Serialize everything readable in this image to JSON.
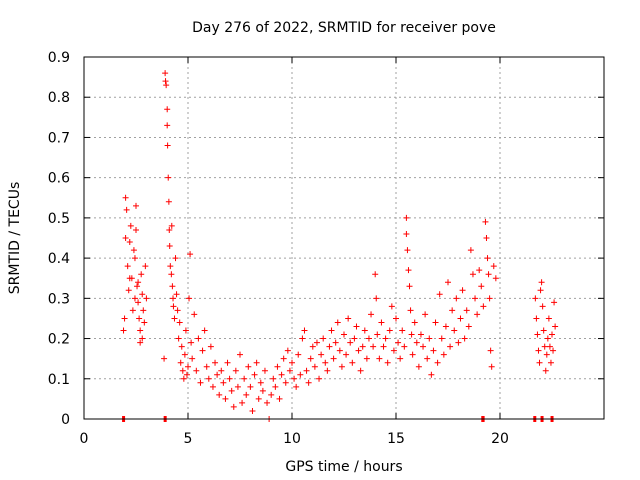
{
  "chart_data": {
    "type": "scatter",
    "title": "Day 276 of 2022, SRMTID for receiver pove",
    "xlabel": "GPS time / hours",
    "ylabel": "SRMTID / TECUs",
    "xlim": [
      0,
      25
    ],
    "ylim": [
      0,
      0.9
    ],
    "xticks": [
      0,
      5,
      10,
      15,
      20
    ],
    "xtick_labels": [
      "0",
      "5",
      "10",
      "15",
      "20"
    ],
    "yticks": [
      0,
      0.1,
      0.2,
      0.3,
      0.4,
      0.5,
      0.6,
      0.7,
      0.8,
      0.9
    ],
    "ytick_labels": [
      "0",
      "0.1",
      "0.2",
      "0.3",
      "0.4",
      "0.5",
      "0.6",
      "0.7",
      "0.8",
      "0.9"
    ],
    "grid": true,
    "marker": "+",
    "color": "#ff0000",
    "series": [
      {
        "name": "SRMTID",
        "points": [
          [
            1.9,
            0.22
          ],
          [
            1.95,
            0.25
          ],
          [
            2.0,
            0.55
          ],
          [
            2.0,
            0.45
          ],
          [
            2.05,
            0.52
          ],
          [
            2.1,
            0.38
          ],
          [
            2.15,
            0.32
          ],
          [
            2.2,
            0.44
          ],
          [
            2.25,
            0.48
          ],
          [
            2.3,
            0.35
          ],
          [
            2.35,
            0.27
          ],
          [
            2.4,
            0.42
          ],
          [
            2.45,
            0.3
          ],
          [
            2.5,
            0.53
          ],
          [
            2.5,
            0.47
          ],
          [
            2.55,
            0.33
          ],
          [
            2.6,
            0.29
          ],
          [
            2.65,
            0.25
          ],
          [
            2.7,
            0.22
          ],
          [
            2.75,
            0.36
          ],
          [
            2.8,
            0.31
          ],
          [
            2.85,
            0.27
          ],
          [
            2.9,
            0.24
          ],
          [
            2.95,
            0.38
          ],
          [
            3.0,
            0.3
          ],
          [
            2.7,
            0.19
          ],
          [
            2.6,
            0.34
          ],
          [
            2.8,
            0.2
          ],
          [
            2.45,
            0.4
          ],
          [
            2.2,
            0.35
          ],
          [
            3.9,
            0.86
          ],
          [
            3.92,
            0.84
          ],
          [
            3.95,
            0.83
          ],
          [
            4.0,
            0.77
          ],
          [
            4.0,
            0.73
          ],
          [
            4.02,
            0.68
          ],
          [
            4.05,
            0.6
          ],
          [
            4.08,
            0.54
          ],
          [
            4.1,
            0.47
          ],
          [
            4.12,
            0.43
          ],
          [
            4.15,
            0.38
          ],
          [
            4.2,
            0.36
          ],
          [
            4.22,
            0.48
          ],
          [
            4.25,
            0.33
          ],
          [
            4.28,
            0.3
          ],
          [
            4.3,
            0.28
          ],
          [
            4.35,
            0.25
          ],
          [
            4.4,
            0.4
          ],
          [
            4.45,
            0.31
          ],
          [
            4.5,
            0.27
          ],
          [
            4.55,
            0.2
          ],
          [
            4.6,
            0.24
          ],
          [
            4.65,
            0.14
          ],
          [
            4.7,
            0.18
          ],
          [
            3.85,
            0.15
          ],
          [
            4.75,
            0.12
          ],
          [
            4.8,
            0.1
          ],
          [
            4.85,
            0.16
          ],
          [
            4.9,
            0.22
          ],
          [
            4.95,
            0.11
          ],
          [
            5.0,
            0.13
          ],
          [
            5.05,
            0.3
          ],
          [
            5.1,
            0.41
          ],
          [
            5.15,
            0.19
          ],
          [
            5.2,
            0.15
          ],
          [
            5.3,
            0.26
          ],
          [
            5.4,
            0.12
          ],
          [
            5.5,
            0.2
          ],
          [
            5.6,
            0.09
          ],
          [
            5.7,
            0.17
          ],
          [
            5.8,
            0.22
          ],
          [
            5.9,
            0.13
          ],
          [
            6.0,
            0.1
          ],
          [
            6.1,
            0.18
          ],
          [
            6.2,
            0.08
          ],
          [
            6.3,
            0.14
          ],
          [
            6.4,
            0.11
          ],
          [
            6.5,
            0.06
          ],
          [
            6.6,
            0.12
          ],
          [
            6.7,
            0.09
          ],
          [
            6.8,
            0.05
          ],
          [
            6.9,
            0.14
          ],
          [
            7.0,
            0.1
          ],
          [
            7.1,
            0.07
          ],
          [
            7.2,
            0.03
          ],
          [
            7.3,
            0.12
          ],
          [
            7.4,
            0.08
          ],
          [
            7.5,
            0.16
          ],
          [
            7.6,
            0.04
          ],
          [
            7.7,
            0.1
          ],
          [
            7.8,
            0.06
          ],
          [
            7.9,
            0.13
          ],
          [
            8.0,
            0.08
          ],
          [
            8.1,
            0.02
          ],
          [
            8.2,
            0.11
          ],
          [
            8.3,
            0.14
          ],
          [
            8.4,
            0.05
          ],
          [
            8.5,
            0.09
          ],
          [
            8.6,
            0.07
          ],
          [
            8.7,
            0.12
          ],
          [
            8.8,
            0.04
          ],
          [
            8.9,
            0.0
          ],
          [
            9.0,
            0.06
          ],
          [
            9.1,
            0.1
          ],
          [
            9.2,
            0.08
          ],
          [
            9.3,
            0.13
          ],
          [
            9.4,
            0.05
          ],
          [
            9.5,
            0.11
          ],
          [
            9.6,
            0.15
          ],
          [
            9.7,
            0.09
          ],
          [
            9.8,
            0.17
          ],
          [
            9.9,
            0.12
          ],
          [
            10.0,
            0.14
          ],
          [
            10.1,
            0.1
          ],
          [
            10.2,
            0.08
          ],
          [
            10.3,
            0.16
          ],
          [
            10.4,
            0.11
          ],
          [
            10.5,
            0.2
          ],
          [
            10.6,
            0.22
          ],
          [
            10.7,
            0.12
          ],
          [
            10.8,
            0.09
          ],
          [
            10.9,
            0.15
          ],
          [
            11.0,
            0.18
          ],
          [
            11.1,
            0.13
          ],
          [
            11.2,
            0.19
          ],
          [
            11.3,
            0.1
          ],
          [
            11.4,
            0.16
          ],
          [
            11.5,
            0.2
          ],
          [
            11.6,
            0.14
          ],
          [
            11.7,
            0.12
          ],
          [
            11.8,
            0.18
          ],
          [
            11.9,
            0.22
          ],
          [
            12.0,
            0.15
          ],
          [
            12.1,
            0.19
          ],
          [
            12.2,
            0.24
          ],
          [
            12.3,
            0.17
          ],
          [
            12.4,
            0.13
          ],
          [
            12.5,
            0.21
          ],
          [
            12.6,
            0.16
          ],
          [
            12.7,
            0.25
          ],
          [
            12.8,
            0.19
          ],
          [
            12.9,
            0.14
          ],
          [
            13.0,
            0.2
          ],
          [
            13.1,
            0.23
          ],
          [
            13.2,
            0.17
          ],
          [
            13.3,
            0.12
          ],
          [
            13.4,
            0.18
          ],
          [
            13.5,
            0.22
          ],
          [
            13.6,
            0.15
          ],
          [
            13.7,
            0.2
          ],
          [
            13.8,
            0.26
          ],
          [
            13.9,
            0.18
          ],
          [
            14.0,
            0.36
          ],
          [
            14.05,
            0.3
          ],
          [
            14.1,
            0.21
          ],
          [
            14.2,
            0.15
          ],
          [
            14.3,
            0.24
          ],
          [
            14.4,
            0.18
          ],
          [
            14.5,
            0.2
          ],
          [
            14.6,
            0.14
          ],
          [
            14.7,
            0.22
          ],
          [
            14.8,
            0.28
          ],
          [
            14.9,
            0.17
          ],
          [
            15.0,
            0.25
          ],
          [
            15.1,
            0.19
          ],
          [
            15.2,
            0.15
          ],
          [
            15.3,
            0.22
          ],
          [
            15.4,
            0.18
          ],
          [
            15.5,
            0.5
          ],
          [
            15.5,
            0.46
          ],
          [
            15.55,
            0.42
          ],
          [
            15.6,
            0.37
          ],
          [
            15.65,
            0.33
          ],
          [
            15.7,
            0.27
          ],
          [
            15.75,
            0.21
          ],
          [
            15.8,
            0.16
          ],
          [
            15.9,
            0.24
          ],
          [
            16.0,
            0.19
          ],
          [
            16.1,
            0.13
          ],
          [
            16.2,
            0.21
          ],
          [
            16.3,
            0.18
          ],
          [
            16.4,
            0.26
          ],
          [
            16.5,
            0.15
          ],
          [
            16.6,
            0.2
          ],
          [
            16.7,
            0.11
          ],
          [
            16.8,
            0.17
          ],
          [
            16.9,
            0.24
          ],
          [
            17.0,
            0.14
          ],
          [
            17.1,
            0.31
          ],
          [
            17.2,
            0.2
          ],
          [
            17.3,
            0.16
          ],
          [
            17.4,
            0.23
          ],
          [
            17.5,
            0.34
          ],
          [
            17.6,
            0.18
          ],
          [
            17.7,
            0.27
          ],
          [
            17.8,
            0.22
          ],
          [
            17.9,
            0.3
          ],
          [
            18.0,
            0.19
          ],
          [
            18.1,
            0.25
          ],
          [
            18.2,
            0.32
          ],
          [
            18.3,
            0.2
          ],
          [
            18.4,
            0.27
          ],
          [
            18.5,
            0.23
          ],
          [
            18.6,
            0.42
          ],
          [
            18.7,
            0.36
          ],
          [
            18.8,
            0.3
          ],
          [
            18.9,
            0.26
          ],
          [
            19.0,
            0.37
          ],
          [
            19.1,
            0.33
          ],
          [
            19.2,
            0.28
          ],
          [
            19.3,
            0.49
          ],
          [
            19.35,
            0.45
          ],
          [
            19.4,
            0.4
          ],
          [
            19.45,
            0.36
          ],
          [
            19.5,
            0.3
          ],
          [
            19.55,
            0.17
          ],
          [
            19.6,
            0.13
          ],
          [
            19.7,
            0.38
          ],
          [
            19.8,
            0.35
          ],
          [
            21.7,
            0.3
          ],
          [
            21.75,
            0.25
          ],
          [
            21.8,
            0.21
          ],
          [
            21.85,
            0.17
          ],
          [
            21.9,
            0.14
          ],
          [
            21.95,
            0.32
          ],
          [
            22.0,
            0.34
          ],
          [
            22.05,
            0.28
          ],
          [
            22.1,
            0.22
          ],
          [
            22.15,
            0.18
          ],
          [
            22.2,
            0.12
          ],
          [
            22.25,
            0.16
          ],
          [
            22.3,
            0.2
          ],
          [
            22.35,
            0.25
          ],
          [
            22.4,
            0.18
          ],
          [
            22.45,
            0.14
          ],
          [
            22.5,
            0.21
          ],
          [
            22.55,
            0.17
          ],
          [
            22.6,
            0.29
          ],
          [
            22.65,
            0.23
          ]
        ]
      }
    ],
    "gap_markers": {
      "description": "solid red marks along the zero line",
      "x_ranges": [
        [
          1.83,
          1.97
        ],
        [
          3.83,
          3.97
        ],
        [
          19.1,
          19.26
        ],
        [
          21.6,
          21.68
        ],
        [
          21.95,
          22.05
        ],
        [
          22.43,
          22.53
        ]
      ]
    }
  }
}
